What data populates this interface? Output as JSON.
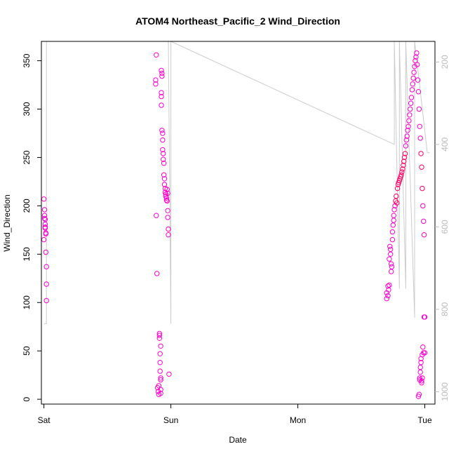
{
  "chart_data": {
    "type": "scatter",
    "title": "ATOM4 Northeast_Pacific_2 Wind_Direction",
    "xlabel": "Date",
    "ylabel": "Wind_Direction",
    "x_ticks": [
      "Sat",
      "Sun",
      "Mon",
      "Tue"
    ],
    "xlim": [
      -0.02,
      3.08
    ],
    "ylim": [
      -5,
      370
    ],
    "y_ticks": [
      0,
      50,
      100,
      150,
      200,
      250,
      300,
      350
    ],
    "y2_ticks": [
      200,
      400,
      600,
      800,
      1000
    ],
    "y2lim": [
      1030,
      150
    ],
    "colors": {
      "points": "#ff00cc",
      "points_alt": "#ff0066",
      "line": "#cccccc",
      "axis": "#000000",
      "right_axis": "#bbbbbb"
    },
    "series": [
      {
        "values_x_days": [
          0.0,
          0.0,
          0.005,
          0.005,
          0.005,
          0.01,
          0.01,
          0.01,
          0.01,
          0.015,
          0.015,
          0.015,
          0.02,
          0.02,
          0.02
        ],
        "values_y": [
          165,
          207,
          196,
          190,
          187,
          186,
          181,
          178,
          177,
          172,
          171,
          152,
          137,
          119,
          102
        ]
      },
      {
        "values_x_days": [
          0.88,
          0.88,
          0.885,
          0.885,
          0.89,
          0.895,
          0.9,
          0.905,
          0.905,
          0.91,
          0.91,
          0.91,
          0.915,
          0.915,
          0.915,
          0.92,
          0.92,
          0.92,
          0.92,
          0.92,
          0.925,
          0.925,
          0.925,
          0.925,
          0.93,
          0.93,
          0.93,
          0.935,
          0.935,
          0.935,
          0.94,
          0.94,
          0.945,
          0.945,
          0.95,
          0.95,
          0.955,
          0.955,
          0.96,
          0.96,
          0.965,
          0.965,
          0.97,
          0.97,
          0.975,
          0.975,
          0.975,
          0.98,
          0.98,
          0.985
        ],
        "values_y": [
          330,
          326,
          356,
          190,
          130,
          12,
          8,
          5,
          14,
          66,
          68,
          63,
          47,
          38,
          29,
          55,
          20,
          6,
          10,
          22,
          340,
          317,
          313,
          304,
          337,
          334,
          278,
          275,
          268,
          258,
          254,
          248,
          244,
          232,
          228,
          222,
          218,
          214,
          212,
          210,
          208,
          206,
          205,
          217,
          213,
          195,
          188,
          176,
          170,
          26
        ]
      },
      {
        "values_x_days": [
          2.7,
          2.7,
          2.71,
          2.71,
          2.715,
          2.72,
          2.72,
          2.725,
          2.73,
          2.73,
          2.735,
          2.735,
          2.74,
          2.745,
          2.745,
          2.75,
          2.755,
          2.755,
          2.76,
          2.765,
          2.77,
          2.775,
          2.78,
          2.785,
          2.79,
          2.795,
          2.8,
          2.805,
          2.81,
          2.815,
          2.82,
          2.825,
          2.83,
          2.835,
          2.84,
          2.845,
          2.85,
          2.855,
          2.86,
          2.865,
          2.87,
          2.875,
          2.88,
          2.885,
          2.89,
          2.895,
          2.9,
          2.905,
          2.91,
          2.915,
          2.92,
          2.925,
          2.93,
          2.935,
          2.94,
          2.945,
          2.95,
          2.955,
          2.96,
          2.965,
          2.97,
          2.975,
          2.98,
          2.985,
          2.99,
          2.995,
          3.0,
          3.0
        ],
        "values_y": [
          110,
          104,
          107,
          117,
          113,
          118,
          145,
          158,
          155,
          150,
          140,
          132,
          137,
          165,
          173,
          180,
          185,
          190,
          196,
          200,
          205,
          210,
          203,
          218,
          222,
          224,
          226,
          228,
          230,
          232,
          235,
          238,
          242,
          246,
          250,
          254,
          262,
          268,
          272,
          278,
          282,
          288,
          294,
          300,
          306,
          312,
          320,
          326,
          332,
          338,
          344,
          350,
          354,
          358,
          346,
          330,
          318,
          300,
          282,
          270,
          254,
          240,
          218,
          200,
          184,
          170,
          85,
          48
        ]
      },
      {
        "values_x_days": [
          2.95,
          2.955,
          2.96,
          2.96,
          2.965,
          2.965,
          2.97,
          2.97,
          2.975,
          2.975,
          2.98,
          2.98,
          2.985,
          2.99,
          2.995
        ],
        "values_y": [
          3,
          5,
          20,
          22,
          28,
          33,
          38,
          42,
          17,
          19,
          22,
          46,
          54,
          48,
          85
        ]
      }
    ],
    "line": {
      "name": "gray reference trace (right axis)",
      "x_days": [
        0.0,
        0.02,
        0.02,
        0.03,
        0.98,
        1.0,
        1.0,
        2.76,
        2.76,
        2.8,
        2.8,
        2.85,
        2.85,
        2.92,
        2.92,
        3.02,
        3.04
      ],
      "y_right": [
        835,
        835,
        150,
        150,
        150,
        835,
        150,
        400,
        150,
        750,
        150,
        750,
        150,
        820,
        150,
        420,
        420
      ]
    }
  }
}
